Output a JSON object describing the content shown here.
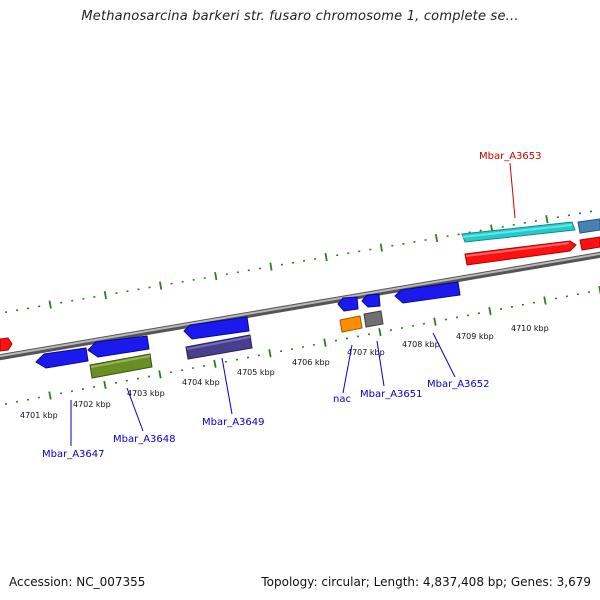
{
  "title": "Methanosarcina barkeri str. fusaro chromosome 1, complete se...",
  "footer": {
    "accession": "Accession: NC_007355",
    "summary": "Topology: circular; Length: 4,837,408 bp; Genes: 3,679"
  },
  "colors": {
    "blue_gene": "#1a1aee",
    "red_gene": "#ff1111",
    "cyan_gene": "#22cccc",
    "olive_gene": "#6b8e23",
    "slate_gene": "#4a3f8f",
    "orange_gene": "#ff8c00",
    "gray_gene": "#707070",
    "steel_gene": "#4682b4",
    "axis_green": "#2e7d1f",
    "label_blue": "#0000cc",
    "label_red": "#cc0000"
  },
  "kbp_labels": [
    "4701 kbp",
    "4702 kbp",
    "4703 kbp",
    "4704 kbp",
    "4705 kbp",
    "4706 kbp",
    "4707 kbp",
    "4708 kbp",
    "4709 kbp",
    "4710 kbp"
  ],
  "gene_labels": {
    "a3647": "Mbar_A3647",
    "a3648": "Mbar_A3648",
    "a3649": "Mbar_A3649",
    "nac": "nac",
    "a3651": "Mbar_A3651",
    "a3652": "Mbar_A3652",
    "a3653": "Mbar_A3653"
  }
}
